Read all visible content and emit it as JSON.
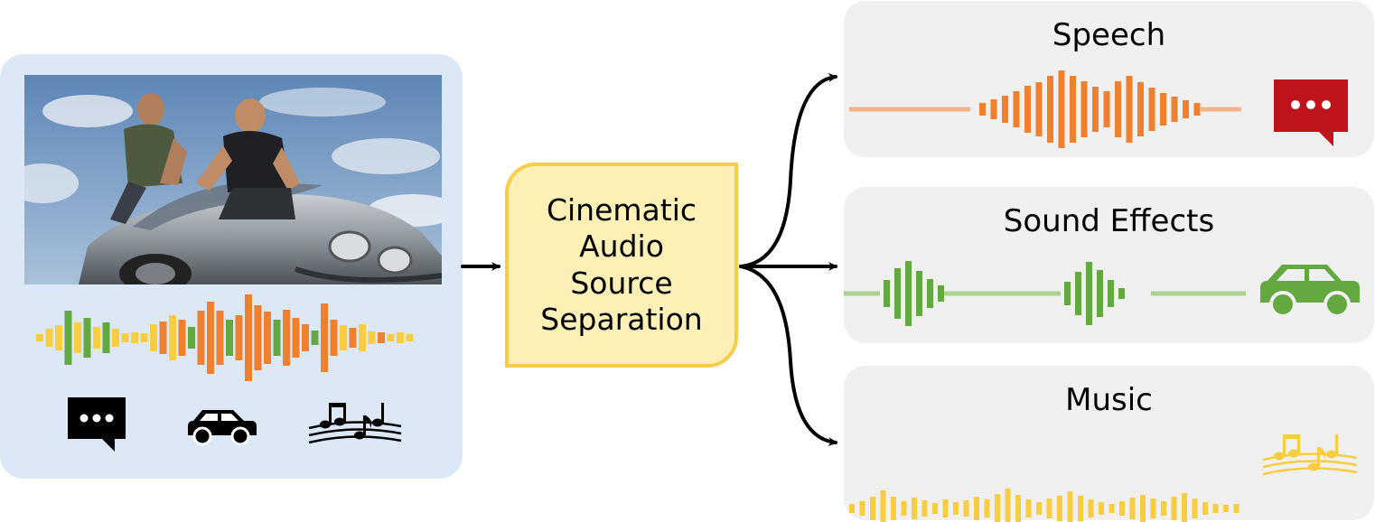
{
  "separator": {
    "label_lines": [
      "Cinematic",
      "Audio",
      "Source",
      "Separation"
    ]
  },
  "stems": [
    {
      "title": "Speech",
      "color": "#f07f2e",
      "line_color": "#f4b389",
      "icon": "speech-bubble-icon"
    },
    {
      "title": "Sound Effects",
      "color": "#63a940",
      "line_color": "#a9d38f",
      "icon": "car-icon"
    },
    {
      "title": "Music",
      "color": "#f9cd40",
      "line_color": "#f9cd40",
      "icon": "music-notes-icon"
    }
  ],
  "input": {
    "mixture_colors": [
      "#f9cd40",
      "#63a940",
      "#f07f2e"
    ],
    "icons": [
      "speech-bubble-icon",
      "car-icon",
      "music-notes-icon"
    ],
    "image": "movie-still-car-scene"
  }
}
